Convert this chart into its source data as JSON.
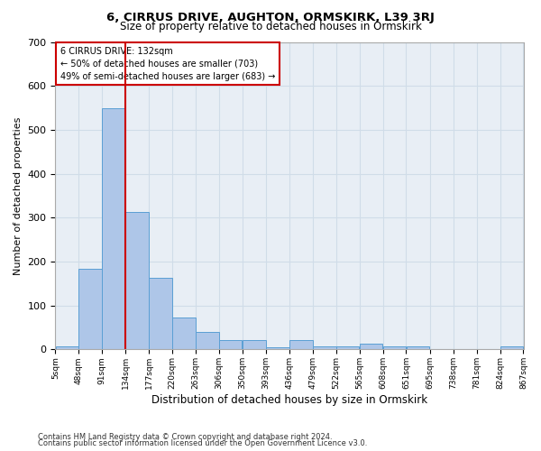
{
  "title1": "6, CIRRUS DRIVE, AUGHTON, ORMSKIRK, L39 3RJ",
  "title2": "Size of property relative to detached houses in Ormskirk",
  "xlabel": "Distribution of detached houses by size in Ormskirk",
  "ylabel": "Number of detached properties",
  "footnote1": "Contains HM Land Registry data © Crown copyright and database right 2024.",
  "footnote2": "Contains public sector information licensed under the Open Government Licence v3.0.",
  "annotation_line1": "6 CIRRUS DRIVE: 132sqm",
  "annotation_line2": "← 50% of detached houses are smaller (703)",
  "annotation_line3": "49% of semi-detached houses are larger (683) →",
  "bar_left_edges": [
    5,
    48,
    91,
    134,
    177,
    220,
    263,
    306,
    350,
    393,
    436,
    479,
    522,
    565,
    608,
    651,
    695,
    738,
    781,
    824
  ],
  "bar_heights": [
    7,
    184,
    549,
    313,
    163,
    72,
    40,
    22,
    22,
    6,
    22,
    7,
    7,
    14,
    7,
    7,
    0,
    0,
    0,
    7
  ],
  "bin_width": 43,
  "bar_color": "#aec6e8",
  "bar_edge_color": "#5a9fd4",
  "vline_x": 134,
  "vline_color": "#cc0000",
  "ylim": [
    0,
    700
  ],
  "xlim": [
    5,
    867
  ],
  "tick_labels": [
    "5sqm",
    "48sqm",
    "91sqm",
    "134sqm",
    "177sqm",
    "220sqm",
    "263sqm",
    "306sqm",
    "350sqm",
    "393sqm",
    "436sqm",
    "479sqm",
    "522sqm",
    "565sqm",
    "608sqm",
    "651sqm",
    "695sqm",
    "738sqm",
    "781sqm",
    "824sqm",
    "867sqm"
  ],
  "grid_color": "#d0dce8",
  "bg_color": "#e8eef5",
  "box_color": "#cc0000",
  "fig_width": 6.0,
  "fig_height": 5.0,
  "dpi": 100
}
